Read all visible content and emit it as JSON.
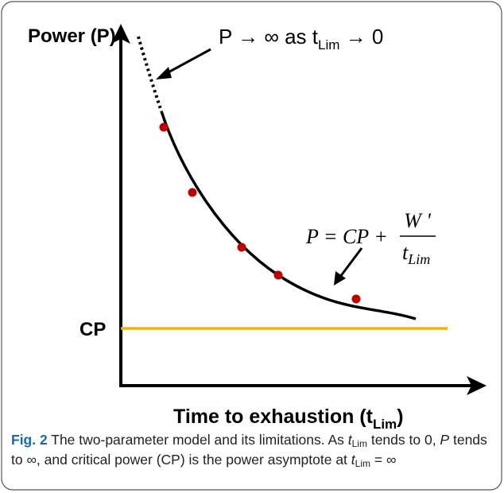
{
  "figure": {
    "y_axis_label": "Power (P)",
    "annotation": {
      "text": "P → ∞ as t",
      "sub": "Lim",
      "tail": " → 0"
    },
    "cp_label": "CP",
    "equation": {
      "lhs": "P = CP +",
      "numerator": "W '",
      "denominator": "t",
      "denominator_sub": "Lim"
    },
    "x_axis_label": {
      "text": "Time to exhaustion (t",
      "sub": "Lim",
      "tail": ")"
    }
  },
  "caption": {
    "label": "Fig. 2",
    "parts": [
      "The two-parameter model and its limitations. As ",
      "t",
      "Lim",
      " tends to 0, ",
      "P",
      " tends to ∞, and critical power (CP) is the power asymptote at ",
      "t",
      "Lim",
      " = ∞"
    ]
  }
}
